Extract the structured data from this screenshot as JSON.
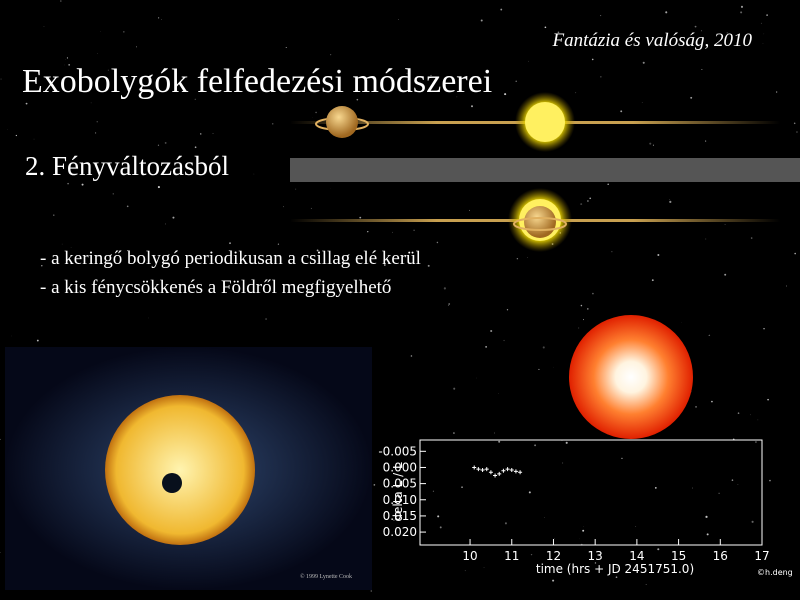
{
  "header": {
    "note": "Fantázia és valóság, 2010",
    "title": "Exobolygók felfedezési módszerei",
    "section": "2. Fényváltozásból"
  },
  "bullets": [
    "- a keringő bolygó periodikusan  a csillag elé kerül",
    "- a kis fénycsökkenés a Földről megfigyelhető"
  ],
  "image_caption": "© 1999 Lynette Cook",
  "plot": {
    "ylabel": "delta L / L",
    "xlabel": "time (hrs + JD 2451751.0)",
    "credit": "©h.deng",
    "xlim": [
      8.8,
      17
    ],
    "ylim": [
      -0.0085,
      0.024
    ],
    "xticks": [
      10,
      11,
      12,
      13,
      14,
      15,
      16,
      17
    ],
    "yticks": [
      -0.005,
      {
        "value": 0,
        "label": "0.000"
      },
      0.005,
      {
        "value": 0.01,
        "label": "0.010"
      },
      0.015,
      {
        "value": 0.02,
        "label": "0.020"
      }
    ],
    "x": [
      10.1,
      10.2,
      10.3,
      10.4,
      10.5,
      10.6,
      10.7,
      10.8,
      10.9,
      11.0,
      11.1,
      11.2
    ],
    "y": [
      0.0,
      0.0005,
      0.0008,
      0.0005,
      0.0015,
      0.0025,
      0.002,
      0.001,
      0.0005,
      0.0008,
      0.0012,
      0.0015
    ]
  }
}
